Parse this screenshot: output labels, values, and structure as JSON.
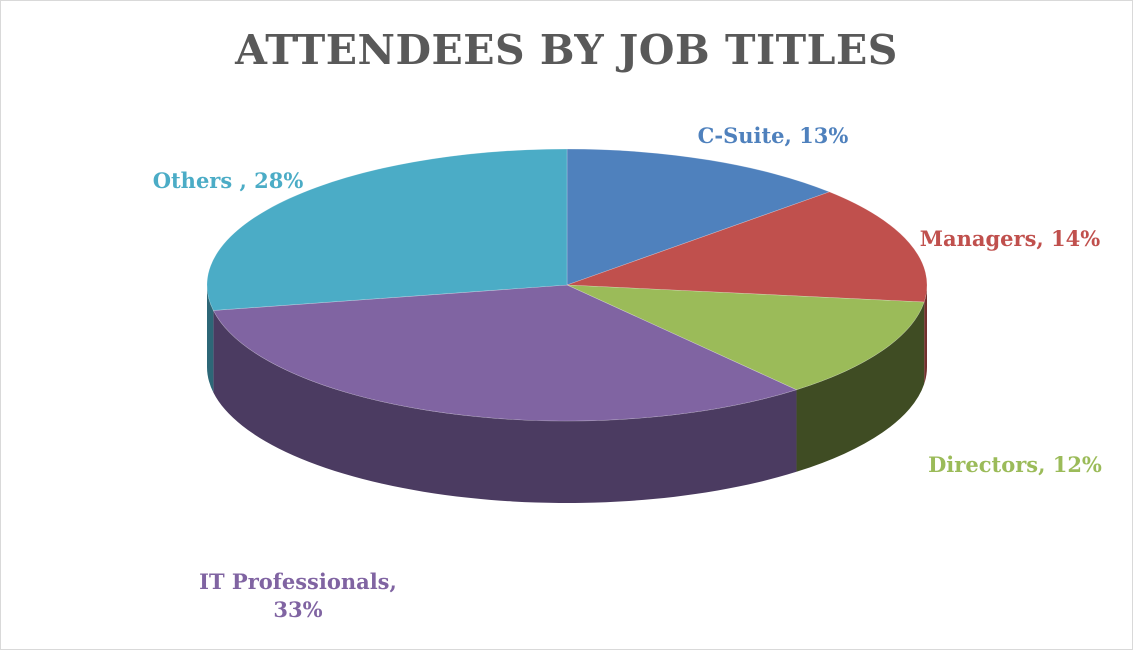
{
  "chart_data": {
    "type": "pie",
    "title": "ATTENDEES BY JOB TITLES",
    "three_d": true,
    "legend": "none",
    "slices": [
      {
        "name": "C-Suite",
        "value": 13,
        "label_lines": [
          "C-Suite, 13%"
        ],
        "color": "#4f81bd",
        "side": "#2f4d71",
        "label_color": "#4f81bd"
      },
      {
        "name": "Managers",
        "value": 14,
        "label_lines": [
          "Managers, 14%"
        ],
        "color": "#c0504d",
        "side": "#73302e",
        "label_color": "#c0504d"
      },
      {
        "name": "Directors",
        "value": 12,
        "label_lines": [
          "Directors, 12%"
        ],
        "color": "#9bbb59",
        "side": "#3f4c23",
        "label_color": "#9bbb59"
      },
      {
        "name": "IT Professionals",
        "value": 33,
        "label_lines": [
          "IT Professionals,",
          "33%"
        ],
        "color": "#8064a2",
        "side": "#4b3b61",
        "label_color": "#8064a2"
      },
      {
        "name": "Others",
        "value": 28,
        "label_lines": [
          "Others , 28%"
        ],
        "color": "#4bacc6",
        "side": "#2d6777",
        "label_color": "#4bacc6"
      }
    ]
  }
}
